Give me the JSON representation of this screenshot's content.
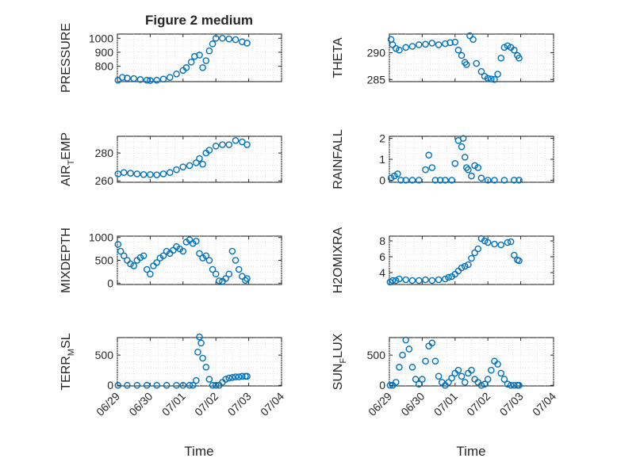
{
  "figure": {
    "title": "Figure 2 medium",
    "marker_color": "#0072BD",
    "x_ticks": [
      "06/29",
      "06/30",
      "07/01",
      "07/02",
      "07/03",
      "07/04"
    ],
    "xlabel": "Time"
  },
  "chart_data": [
    {
      "type": "scatter",
      "ylabel_main": "PRESSURE",
      "ylabel_sub": "",
      "ylim": [
        690,
        1030
      ],
      "yticks": [
        800,
        900,
        1000
      ],
      "xlim": [
        0,
        5
      ],
      "grid": true,
      "show_x_tick_labels": false,
      "title": "Figure 2 medium",
      "x": [
        0.02,
        0.15,
        0.3,
        0.5,
        0.7,
        0.9,
        1.0,
        1.2,
        1.4,
        1.6,
        1.8,
        2.0,
        2.1,
        2.25,
        2.35,
        2.5,
        2.6,
        2.7,
        2.8,
        2.9,
        3.0,
        3.2,
        3.4,
        3.6,
        3.8,
        3.95
      ],
      "y": [
        700,
        720,
        715,
        712,
        705,
        700,
        698,
        700,
        708,
        720,
        745,
        770,
        790,
        830,
        870,
        880,
        790,
        840,
        910,
        960,
        1000,
        1000,
        995,
        990,
        975,
        965
      ]
    },
    {
      "type": "scatter",
      "ylabel_main": "THETA",
      "ylabel_sub": "",
      "ylim": [
        284.6,
        293.5
      ],
      "yticks": [
        285,
        290
      ],
      "xlim": [
        0,
        5
      ],
      "grid": true,
      "show_x_tick_labels": false,
      "title": "",
      "x": [
        0.05,
        0.1,
        0.2,
        0.3,
        0.5,
        0.7,
        0.9,
        1.1,
        1.3,
        1.5,
        1.7,
        1.85,
        2.0,
        2.1,
        2.2,
        2.3,
        2.35,
        2.45,
        2.55,
        2.65,
        2.8,
        2.9,
        3.0,
        3.1,
        3.2,
        3.3,
        3.4,
        3.5,
        3.6,
        3.7,
        3.8,
        3.9,
        3.95
      ],
      "y": [
        292.5,
        291.5,
        290.8,
        290.5,
        291.0,
        291.2,
        291.5,
        291.6,
        291.8,
        291.5,
        291.7,
        291.9,
        292.0,
        290.5,
        289.5,
        288.2,
        287.8,
        293.2,
        292.5,
        288.0,
        286.5,
        285.6,
        285.2,
        285.1,
        285.0,
        286.0,
        289.0,
        291.0,
        291.3,
        291.0,
        290.5,
        289.5,
        289.0
      ]
    },
    {
      "type": "scatter",
      "ylabel_main": "AIR",
      "ylabel_sub": "T",
      "ylabel_rest": "EMP",
      "ylim": [
        259,
        292
      ],
      "yticks": [
        260,
        280
      ],
      "xlim": [
        0,
        5
      ],
      "grid": true,
      "show_x_tick_labels": false,
      "title": "",
      "x": [
        0.02,
        0.2,
        0.4,
        0.6,
        0.8,
        1.0,
        1.2,
        1.4,
        1.6,
        1.8,
        2.0,
        2.2,
        2.4,
        2.5,
        2.6,
        2.7,
        2.8,
        3.0,
        3.2,
        3.4,
        3.6,
        3.8,
        3.95
      ],
      "y": [
        265,
        266,
        265.5,
        265,
        264.5,
        264.5,
        264.3,
        265,
        266,
        268,
        270,
        271,
        273,
        276,
        272,
        280,
        282,
        285,
        286,
        286,
        289,
        288,
        286
      ]
    },
    {
      "type": "scatter",
      "ylabel_main": "RAINFALL",
      "ylabel_sub": "",
      "ylim": [
        -0.1,
        2.1
      ],
      "yticks": [
        0,
        1,
        2
      ],
      "xlim": [
        0,
        5
      ],
      "grid": true,
      "show_x_tick_labels": false,
      "title": "",
      "x": [
        0.05,
        0.15,
        0.25,
        0.35,
        0.5,
        0.7,
        0.9,
        1.1,
        1.2,
        1.3,
        1.4,
        1.55,
        1.7,
        1.9,
        2.0,
        2.1,
        2.2,
        2.25,
        2.3,
        2.35,
        2.4,
        2.5,
        2.6,
        2.7,
        2.8,
        3.0,
        3.2,
        3.5,
        3.8,
        3.95
      ],
      "y": [
        0.1,
        0.2,
        0.3,
        0.0,
        0.0,
        0.0,
        0.0,
        0.5,
        1.2,
        0.6,
        0.0,
        0.0,
        0.0,
        0.0,
        0.8,
        1.9,
        1.6,
        2.0,
        1.1,
        0.6,
        0.5,
        0.2,
        0.7,
        0.6,
        0.1,
        0.0,
        0.0,
        0.0,
        0.0,
        0.0
      ]
    },
    {
      "type": "scatter",
      "ylabel_main": "MIXDEPTH",
      "ylabel_sub": "",
      "ylim": [
        -30,
        1030
      ],
      "yticks": [
        0,
        500,
        1000
      ],
      "xlim": [
        0,
        5
      ],
      "grid": true,
      "show_x_tick_labels": false,
      "title": "",
      "x": [
        0.02,
        0.1,
        0.2,
        0.3,
        0.4,
        0.5,
        0.6,
        0.7,
        0.8,
        0.9,
        1.0,
        1.1,
        1.2,
        1.3,
        1.4,
        1.5,
        1.6,
        1.7,
        1.8,
        1.9,
        2.0,
        2.1,
        2.2,
        2.3,
        2.4,
        2.5,
        2.6,
        2.7,
        2.8,
        2.9,
        3.0,
        3.1,
        3.2,
        3.3,
        3.4,
        3.5,
        3.6,
        3.7,
        3.8,
        3.9,
        3.95
      ],
      "y": [
        850,
        700,
        600,
        500,
        420,
        380,
        500,
        560,
        600,
        300,
        200,
        380,
        450,
        550,
        600,
        700,
        650,
        720,
        800,
        750,
        700,
        900,
        950,
        870,
        920,
        650,
        550,
        600,
        500,
        300,
        200,
        50,
        40,
        100,
        200,
        700,
        500,
        300,
        150,
        60,
        100
      ]
    },
    {
      "type": "scatter",
      "ylabel_main": "H2OMIXRA",
      "ylabel_sub": "",
      "ylim": [
        2.5,
        8.6
      ],
      "yticks": [
        4,
        6,
        8
      ],
      "xlim": [
        0,
        5
      ],
      "grid": true,
      "show_x_tick_labels": false,
      "title": "",
      "x": [
        0.02,
        0.1,
        0.2,
        0.3,
        0.5,
        0.7,
        0.9,
        1.1,
        1.3,
        1.5,
        1.7,
        1.8,
        1.9,
        2.0,
        2.1,
        2.2,
        2.3,
        2.4,
        2.5,
        2.6,
        2.7,
        2.8,
        2.9,
        3.0,
        3.2,
        3.4,
        3.6,
        3.7,
        3.8,
        3.9,
        3.95
      ],
      "y": [
        2.8,
        3.0,
        3.0,
        3.2,
        3.1,
        3.0,
        3.0,
        3.1,
        3.0,
        3.1,
        3.2,
        3.4,
        3.5,
        3.8,
        4.2,
        4.6,
        4.8,
        5.0,
        5.8,
        6.5,
        7.0,
        8.3,
        8.0,
        7.8,
        7.6,
        7.5,
        7.8,
        7.9,
        6.2,
        5.6,
        5.5
      ]
    },
    {
      "type": "scatter",
      "ylabel_main": "TERR",
      "ylabel_sub": "M",
      "ylabel_rest": "SL",
      "ylim": [
        -10,
        790
      ],
      "yticks": [
        0,
        500
      ],
      "xlim": [
        0,
        5
      ],
      "grid": true,
      "show_x_tick_labels": true,
      "title": "",
      "x": [
        0.02,
        0.3,
        0.6,
        0.9,
        1.2,
        1.5,
        1.8,
        2.0,
        2.2,
        2.3,
        2.4,
        2.45,
        2.5,
        2.55,
        2.6,
        2.7,
        2.8,
        2.9,
        3.0,
        3.1,
        3.2,
        3.3,
        3.4,
        3.5,
        3.6,
        3.7,
        3.8,
        3.9,
        3.95
      ],
      "y": [
        0,
        0,
        0,
        0,
        0,
        0,
        0,
        0,
        0,
        0,
        80,
        550,
        800,
        700,
        450,
        300,
        100,
        0,
        0,
        0,
        50,
        100,
        120,
        130,
        140,
        140,
        150,
        150,
        150
      ]
    },
    {
      "type": "scatter",
      "ylabel_main": "SUN",
      "ylabel_sub": "F",
      "ylabel_rest": "LUX",
      "ylim": [
        -10,
        790
      ],
      "yticks": [
        0,
        500
      ],
      "xlim": [
        0,
        5
      ],
      "grid": true,
      "show_x_tick_labels": true,
      "title": "",
      "x": [
        0.02,
        0.1,
        0.2,
        0.3,
        0.4,
        0.5,
        0.6,
        0.7,
        0.8,
        0.9,
        1.0,
        1.1,
        1.2,
        1.3,
        1.4,
        1.5,
        1.6,
        1.7,
        1.8,
        1.9,
        2.0,
        2.1,
        2.2,
        2.3,
        2.4,
        2.5,
        2.6,
        2.7,
        2.8,
        2.9,
        3.0,
        3.1,
        3.2,
        3.3,
        3.4,
        3.5,
        3.6,
        3.7,
        3.8,
        3.9,
        3.95
      ],
      "y": [
        0,
        0,
        50,
        300,
        500,
        750,
        600,
        300,
        100,
        20,
        100,
        400,
        650,
        700,
        400,
        150,
        50,
        0,
        50,
        120,
        200,
        250,
        150,
        50,
        200,
        250,
        100,
        50,
        0,
        20,
        100,
        250,
        400,
        350,
        200,
        100,
        20,
        0,
        0,
        0,
        0
      ]
    }
  ]
}
